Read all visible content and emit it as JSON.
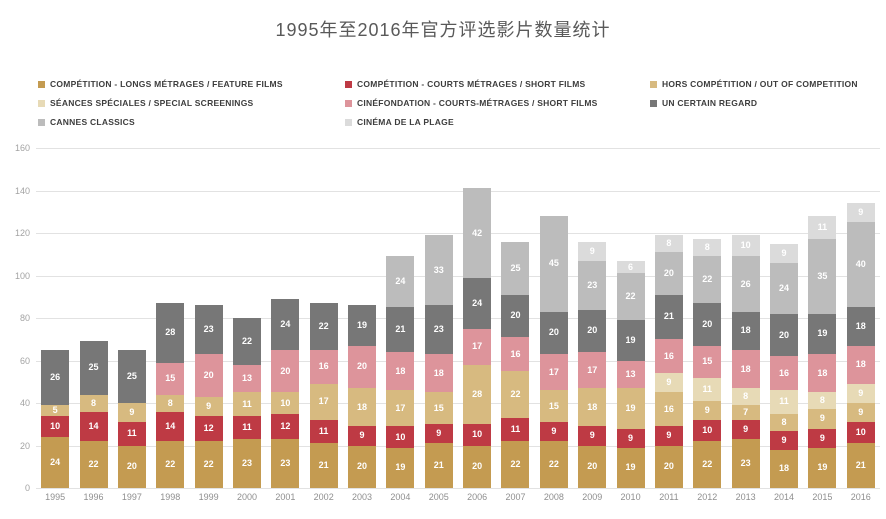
{
  "chart_data": {
    "type": "stacked-bar",
    "title": "1995年至2016年官方评选影片数量统计",
    "categories": [
      "1995",
      "1996",
      "1997",
      "1998",
      "1999",
      "2000",
      "2001",
      "2002",
      "2003",
      "2004",
      "2005",
      "2006",
      "2007",
      "2008",
      "2009",
      "2010",
      "2011",
      "2012",
      "2013",
      "2014",
      "2015",
      "2016"
    ],
    "series": [
      {
        "name": "COMPÉTITION - LONGS MÉTRAGES / FEATURE FILMS",
        "color": "#C49B51",
        "values": [
          24,
          22,
          20,
          22,
          22,
          23,
          23,
          21,
          20,
          19,
          21,
          20,
          22,
          22,
          20,
          19,
          20,
          22,
          23,
          18,
          19,
          21
        ]
      },
      {
        "name": "COMPÉTITION - COURTS MÉTRAGES / SHORT FILMS",
        "color": "#BE3A44",
        "values": [
          10,
          14,
          11,
          14,
          12,
          11,
          12,
          11,
          9,
          10,
          9,
          10,
          11,
          9,
          9,
          9,
          9,
          10,
          9,
          9,
          9,
          10
        ]
      },
      {
        "name": "HORS COMPÉTITION / OUT OF COMPETITION",
        "color": "#D7BA80",
        "values": [
          5,
          8,
          9,
          8,
          9,
          11,
          10,
          17,
          18,
          17,
          15,
          28,
          22,
          15,
          18,
          19,
          16,
          9,
          7,
          8,
          9,
          9
        ]
      },
      {
        "name": "SÉANCES SPÉCIALES / SPECIAL SCREENINGS",
        "color": "#E7DAB6",
        "values": [
          0,
          0,
          0,
          0,
          0,
          0,
          0,
          0,
          0,
          0,
          0,
          0,
          0,
          0,
          0,
          0,
          9,
          11,
          8,
          11,
          8,
          9
        ]
      },
      {
        "name": "CINÉFONDATION - COURTS-MÉTRAGES / SHORT FILMS",
        "color": "#DD949B",
        "values": [
          0,
          0,
          0,
          15,
          20,
          13,
          20,
          16,
          20,
          18,
          18,
          17,
          16,
          17,
          17,
          13,
          16,
          15,
          18,
          16,
          18,
          18
        ]
      },
      {
        "name": "UN CERTAIN REGARD",
        "color": "#777777",
        "values": [
          26,
          25,
          25,
          28,
          23,
          22,
          24,
          22,
          19,
          21,
          23,
          24,
          20,
          20,
          20,
          19,
          21,
          20,
          18,
          20,
          19,
          18
        ]
      },
      {
        "name": "CANNES CLASSICS",
        "color": "#BCBCBC",
        "values": [
          0,
          0,
          0,
          0,
          0,
          0,
          0,
          0,
          0,
          24,
          33,
          42,
          25,
          45,
          23,
          22,
          20,
          22,
          26,
          24,
          35,
          40
        ]
      },
      {
        "name": "CINÉMA DE LA PLAGE",
        "color": "#DBDBDB",
        "values": [
          0,
          0,
          0,
          0,
          0,
          0,
          0,
          0,
          0,
          0,
          0,
          0,
          0,
          0,
          9,
          6,
          8,
          8,
          10,
          9,
          11,
          9
        ]
      }
    ],
    "totals": [
      65,
      69,
      65,
      87,
      86,
      80,
      89,
      87,
      86,
      109,
      119,
      141,
      116,
      128,
      116,
      107,
      119,
      117,
      119,
      115,
      128,
      134
    ],
    "ylim": [
      0,
      160
    ],
    "y_ticks": [
      160,
      140,
      120,
      100,
      80,
      60,
      40,
      20,
      0
    ],
    "grid": true,
    "legend_position": "top",
    "data_labels": "white, shown on every non-zero segment"
  }
}
